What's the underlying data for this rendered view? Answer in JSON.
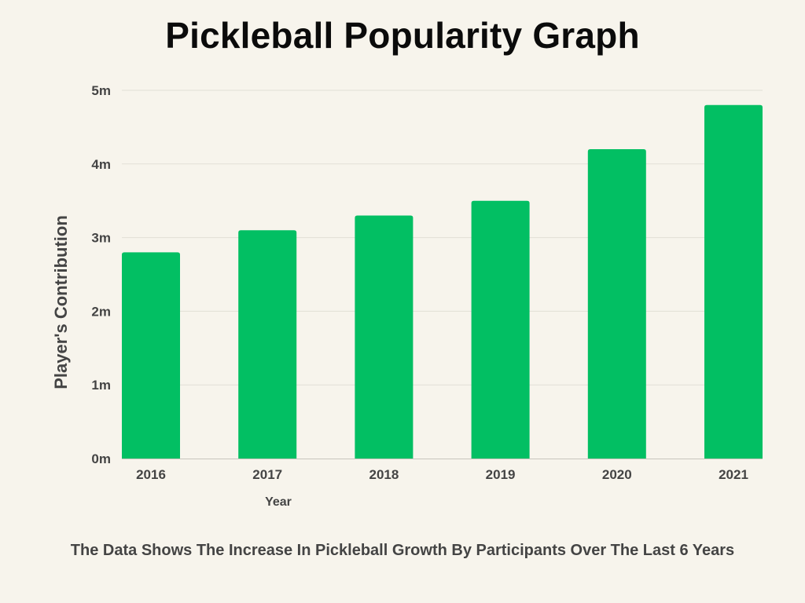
{
  "chart_data": {
    "type": "bar",
    "title": "Pickleball Popularity Graph",
    "caption": "The Data Shows The Increase In Pickleball Growth By Participants Over The Last 6 Years",
    "xlabel": "Year",
    "ylabel": "Player's Contribution",
    "categories": [
      "2016",
      "2017",
      "2018",
      "2019",
      "2020",
      "2021"
    ],
    "values": [
      2.8,
      3.1,
      3.3,
      3.5,
      4.2,
      4.8
    ],
    "unit": "m",
    "ylim": [
      0,
      5
    ],
    "yticks": [
      "0m",
      "1m",
      "2m",
      "3m",
      "4m",
      "5m"
    ],
    "grid": true,
    "legend": "none",
    "colors": {
      "bar": "#02bf63",
      "background": "#f7f4ec",
      "grid": "#e2dfd6",
      "axis": "#c9c6bd"
    }
  }
}
